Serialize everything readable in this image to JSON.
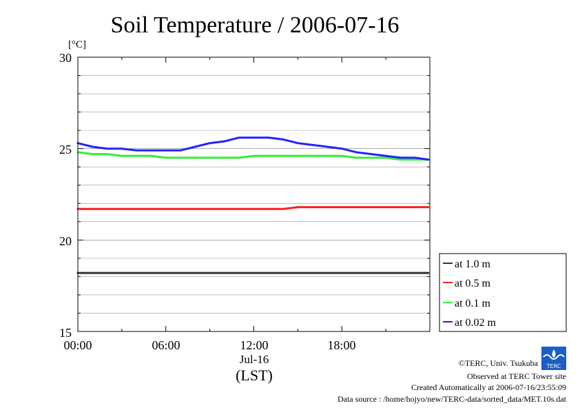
{
  "colors": {
    "at_1_0_m": "#333333",
    "at_0_5_m": "#ff2020",
    "at_0_1_m": "#33ee33",
    "at_0_02_m": "#2222ff",
    "background": "#ffffff",
    "frame": "#000000",
    "grid": "#999999"
  },
  "footer": {
    "copyright": "©TERC, Univ. Tsukuba",
    "observed": "Observed at TERC Tower site",
    "created": "Created Automatically at 2006-07-16/23:55:09",
    "source": "Data source : /home/hojyo/new/TERC-data/sorted_data/MET.10s.dat",
    "logo_text": "TERC"
  },
  "chart_data": {
    "type": "line",
    "title": "Soil Temperature / 2006-07-16",
    "ylabel": "[°C]",
    "xlabel": "(LST)",
    "date_label": "Jul-16",
    "ylim": [
      15,
      30
    ],
    "xlim_hours": [
      0,
      24
    ],
    "y_ticks": [
      "15",
      "20",
      "25",
      "30"
    ],
    "x_ticks": [
      "00:00",
      "06:00",
      "12:00",
      "18:00"
    ],
    "grid": true,
    "legend_position": "bottom-right outside",
    "x": [
      0,
      1,
      2,
      3,
      4,
      5,
      6,
      7,
      8,
      9,
      10,
      11,
      12,
      13,
      14,
      15,
      16,
      17,
      18,
      19,
      20,
      21,
      22,
      23,
      23.9
    ],
    "series": [
      {
        "name": "at 1.0 m",
        "values": [
          18.2,
          18.2,
          18.2,
          18.2,
          18.2,
          18.2,
          18.2,
          18.2,
          18.2,
          18.2,
          18.2,
          18.2,
          18.2,
          18.2,
          18.2,
          18.2,
          18.2,
          18.2,
          18.2,
          18.2,
          18.2,
          18.2,
          18.2,
          18.2,
          18.2
        ]
      },
      {
        "name": "at 0.5 m",
        "values": [
          21.7,
          21.7,
          21.7,
          21.7,
          21.7,
          21.7,
          21.7,
          21.7,
          21.7,
          21.7,
          21.7,
          21.7,
          21.7,
          21.7,
          21.7,
          21.8,
          21.8,
          21.8,
          21.8,
          21.8,
          21.8,
          21.8,
          21.8,
          21.8,
          21.8
        ]
      },
      {
        "name": "at 0.1 m",
        "values": [
          24.8,
          24.7,
          24.7,
          24.6,
          24.6,
          24.6,
          24.5,
          24.5,
          24.5,
          24.5,
          24.5,
          24.5,
          24.6,
          24.6,
          24.6,
          24.6,
          24.6,
          24.6,
          24.6,
          24.5,
          24.5,
          24.5,
          24.4,
          24.4,
          24.4
        ]
      },
      {
        "name": "at 0.02 m",
        "values": [
          25.3,
          25.1,
          25.0,
          25.0,
          24.9,
          24.9,
          24.9,
          24.9,
          25.1,
          25.3,
          25.4,
          25.6,
          25.6,
          25.6,
          25.5,
          25.3,
          25.2,
          25.1,
          25.0,
          24.8,
          24.7,
          24.6,
          24.5,
          24.5,
          24.4
        ]
      }
    ]
  }
}
